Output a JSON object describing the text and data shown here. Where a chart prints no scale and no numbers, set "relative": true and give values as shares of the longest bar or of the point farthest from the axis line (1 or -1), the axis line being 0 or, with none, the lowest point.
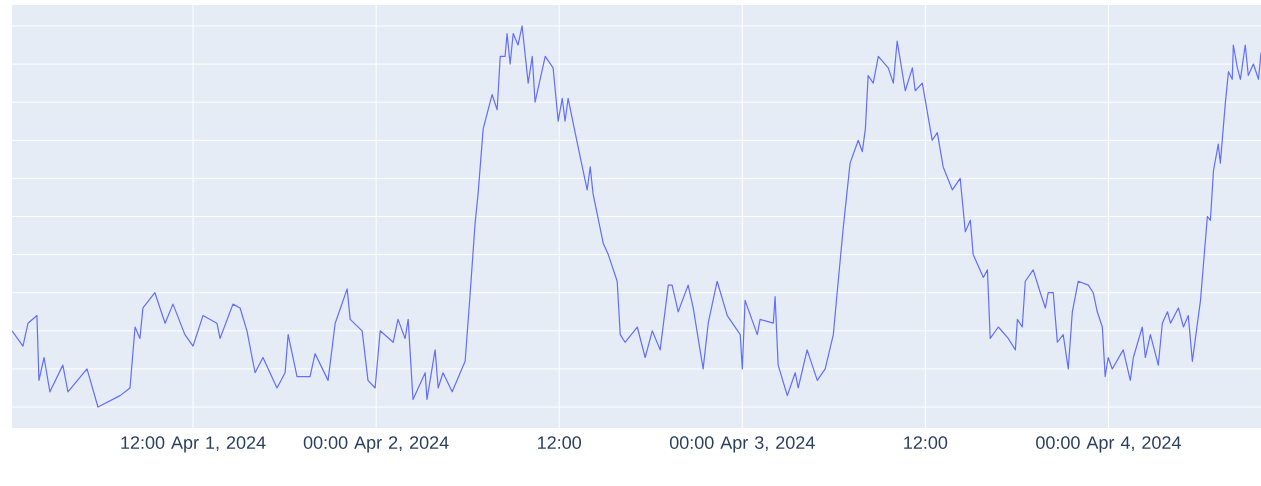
{
  "chart_data": {
    "type": "line",
    "relative": true,
    "color": "#636efa",
    "grid": true,
    "xlim": [
      "2024-04-01T00:08",
      "2024-04-04T10:00"
    ],
    "xticks": [
      {
        "value": "2024-04-01T12:00",
        "label": "12:00 Apr 1, 2024"
      },
      {
        "value": "2024-04-02T00:00",
        "label": "00:00 Apr 2, 2024"
      },
      {
        "value": "2024-04-02T12:00",
        "label": "12:00"
      },
      {
        "value": "2024-04-03T00:00",
        "label": "00:00 Apr 3, 2024"
      },
      {
        "value": "2024-04-03T12:00",
        "label": "12:00"
      },
      {
        "value": "2024-04-04T00:00",
        "label": "00:00 Apr 4, 2024"
      }
    ],
    "x": [
      "2024-04-01T00:08",
      "2024-04-01T00:51",
      "2024-04-01T01:11",
      "2024-04-01T01:46",
      "2024-04-01T01:54",
      "2024-04-01T02:14",
      "2024-04-01T02:37",
      "2024-04-01T03:28",
      "2024-04-01T03:48",
      "2024-04-01T05:03",
      "2024-04-01T05:46",
      "2024-04-01T07:13",
      "2024-04-01T07:52",
      "2024-04-01T08:12",
      "2024-04-01T08:31",
      "2024-04-01T08:43",
      "2024-04-01T09:30",
      "2024-04-01T10:10",
      "2024-04-01T10:41",
      "2024-04-01T11:28",
      "2024-04-01T12:00",
      "2024-04-01T12:39",
      "2024-04-01T13:34",
      "2024-04-01T13:46",
      "2024-04-01T14:37",
      "2024-04-01T15:05",
      "2024-04-01T15:32",
      "2024-04-01T16:04",
      "2024-04-01T16:35",
      "2024-04-01T17:30",
      "2024-04-01T18:02",
      "2024-04-01T18:14",
      "2024-04-01T18:49",
      "2024-04-01T19:40",
      "2024-04-01T20:00",
      "2024-04-01T20:51",
      "2024-04-01T21:19",
      "2024-04-01T22:06",
      "2024-04-01T22:18",
      "2024-04-01T23:05",
      "2024-04-01T23:28",
      "2024-04-01T23:56",
      "2024-04-02T00:16",
      "2024-04-02T01:07",
      "2024-04-02T01:26",
      "2024-04-02T01:54",
      "2024-04-02T02:06",
      "2024-04-02T02:25",
      "2024-04-02T03:13",
      "2024-04-02T03:20",
      "2024-04-02T03:52",
      "2024-04-02T04:04",
      "2024-04-02T04:23",
      "2024-04-02T04:59",
      "2024-04-02T05:50",
      "2024-04-02T06:10",
      "2024-04-02T06:29",
      "2024-04-02T06:41",
      "2024-04-02T07:01",
      "2024-04-02T07:36",
      "2024-04-02T07:56",
      "2024-04-02T08:08",
      "2024-04-02T08:27",
      "2024-04-02T08:35",
      "2024-04-02T08:47",
      "2024-04-02T08:59",
      "2024-04-02T09:18",
      "2024-04-02T09:34",
      "2024-04-02T09:58",
      "2024-04-02T10:14",
      "2024-04-02T10:25",
      "2024-04-02T11:05",
      "2024-04-02T11:36",
      "2024-04-02T11:56",
      "2024-04-02T12:12",
      "2024-04-02T12:23",
      "2024-04-02T12:35",
      "2024-04-02T13:15",
      "2024-04-02T13:50",
      "2024-04-02T14:02",
      "2024-04-02T14:13",
      "2024-04-02T14:53",
      "2024-04-02T15:13",
      "2024-04-02T15:48",
      "2024-04-02T16:00",
      "2024-04-02T16:19",
      "2024-04-02T17:07",
      "2024-04-02T17:38",
      "2024-04-02T18:06",
      "2024-04-02T18:37",
      "2024-04-02T19:09",
      "2024-04-02T19:24",
      "2024-04-02T19:48",
      "2024-04-02T20:27",
      "2024-04-02T20:47",
      "2024-04-02T21:26",
      "2024-04-02T21:46",
      "2024-04-02T22:21",
      "2024-04-02T23:01",
      "2024-04-02T23:52",
      "2024-04-03T00:00",
      "2024-04-03T00:11",
      "2024-04-03T00:59",
      "2024-04-03T01:10",
      "2024-04-03T02:02",
      "2024-04-03T02:09",
      "2024-04-03T02:21",
      "2024-04-03T02:57",
      "2024-04-03T03:28",
      "2024-04-03T03:40",
      "2024-04-03T04:15",
      "2024-04-03T04:55",
      "2024-04-03T05:26",
      "2024-04-03T05:58",
      "2024-04-03T06:13",
      "2024-04-03T06:37",
      "2024-04-03T07:04",
      "2024-04-03T07:36",
      "2024-04-03T07:52",
      "2024-04-03T08:04",
      "2024-04-03T08:15",
      "2024-04-03T08:35",
      "2024-04-03T08:55",
      "2024-04-03T09:34",
      "2024-04-03T09:54",
      "2024-04-03T10:09",
      "2024-04-03T10:41",
      "2024-04-03T11:09",
      "2024-04-03T11:20",
      "2024-04-03T11:48",
      "2024-04-03T12:27",
      "2024-04-03T12:47",
      "2024-04-03T13:10",
      "2024-04-03T13:46",
      "2024-04-03T14:17",
      "2024-04-03T14:37",
      "2024-04-03T14:57",
      "2024-04-03T15:08",
      "2024-04-03T15:48",
      "2024-04-03T16:04",
      "2024-04-03T16:15",
      "2024-04-03T16:47",
      "2024-04-03T17:26",
      "2024-04-03T17:54",
      "2024-04-03T18:02",
      "2024-04-03T18:21",
      "2024-04-03T18:33",
      "2024-04-03T19:04",
      "2024-04-03T19:32",
      "2024-04-03T19:52",
      "2024-04-03T20:03",
      "2024-04-03T20:23",
      "2024-04-03T20:39",
      "2024-04-03T21:02",
      "2024-04-03T21:22",
      "2024-04-03T21:38",
      "2024-04-03T22:01",
      "2024-04-03T22:41",
      "2024-04-03T23:00",
      "2024-04-03T23:16",
      "2024-04-03T23:36",
      "2024-04-03T23:47",
      "2024-04-03T23:59",
      "2024-04-04T00:15",
      "2024-04-04T00:58",
      "2024-04-04T01:26",
      "2024-04-04T01:38",
      "2024-04-04T02:13",
      "2024-04-04T02:25",
      "2024-04-04T02:45",
      "2024-04-04T03:16",
      "2024-04-04T03:32",
      "2024-04-04T03:52",
      "2024-04-04T04:04",
      "2024-04-04T04:35",
      "2024-04-04T04:55",
      "2024-04-04T05:14",
      "2024-04-04T05:30",
      "2024-04-04T05:50",
      "2024-04-04T06:02",
      "2024-04-04T06:29",
      "2024-04-04T06:41",
      "2024-04-04T06:53",
      "2024-04-04T07:12",
      "2024-04-04T07:20",
      "2024-04-04T07:40",
      "2024-04-04T07:52",
      "2024-04-04T08:07",
      "2024-04-04T08:11",
      "2024-04-04T08:27",
      "2024-04-04T08:39",
      "2024-04-04T08:58",
      "2024-04-04T09:10",
      "2024-04-04T09:30",
      "2024-04-04T09:50",
      "2024-04-04T10:00"
    ],
    "values": [
      0.2,
      0.16,
      0.22,
      0.24,
      0.07,
      0.13,
      0.04,
      0.11,
      0.04,
      0.1,
      0.0,
      0.03,
      0.05,
      0.21,
      0.18,
      0.26,
      0.3,
      0.22,
      0.27,
      0.19,
      0.16,
      0.24,
      0.22,
      0.18,
      0.27,
      0.26,
      0.2,
      0.09,
      0.13,
      0.05,
      0.09,
      0.19,
      0.08,
      0.08,
      0.14,
      0.07,
      0.22,
      0.31,
      0.23,
      0.2,
      0.07,
      0.05,
      0.2,
      0.17,
      0.23,
      0.18,
      0.23,
      0.02,
      0.09,
      0.02,
      0.15,
      0.05,
      0.09,
      0.04,
      0.12,
      0.3,
      0.48,
      0.56,
      0.73,
      0.82,
      0.78,
      0.92,
      0.92,
      0.98,
      0.9,
      0.98,
      0.95,
      1.0,
      0.85,
      0.92,
      0.8,
      0.92,
      0.89,
      0.75,
      0.81,
      0.75,
      0.81,
      0.68,
      0.57,
      0.63,
      0.56,
      0.43,
      0.4,
      0.33,
      0.19,
      0.17,
      0.21,
      0.13,
      0.2,
      0.15,
      0.32,
      0.32,
      0.25,
      0.32,
      0.26,
      0.1,
      0.22,
      0.33,
      0.24,
      0.19,
      0.1,
      0.28,
      0.19,
      0.23,
      0.22,
      0.29,
      0.11,
      0.03,
      0.09,
      0.05,
      0.15,
      0.07,
      0.1,
      0.19,
      0.3,
      0.47,
      0.64,
      0.7,
      0.67,
      0.73,
      0.87,
      0.85,
      0.92,
      0.89,
      0.85,
      0.96,
      0.83,
      0.89,
      0.83,
      0.85,
      0.7,
      0.72,
      0.63,
      0.57,
      0.6,
      0.46,
      0.49,
      0.4,
      0.34,
      0.36,
      0.18,
      0.21,
      0.18,
      0.15,
      0.23,
      0.21,
      0.33,
      0.36,
      0.3,
      0.26,
      0.3,
      0.3,
      0.17,
      0.19,
      0.1,
      0.25,
      0.33,
      0.32,
      0.3,
      0.25,
      0.21,
      0.08,
      0.13,
      0.1,
      0.15,
      0.07,
      0.13,
      0.21,
      0.13,
      0.19,
      0.11,
      0.22,
      0.25,
      0.22,
      0.26,
      0.21,
      0.24,
      0.12,
      0.22,
      0.28,
      0.5,
      0.49,
      0.62,
      0.69,
      0.64,
      0.8,
      0.88,
      0.86,
      0.95,
      0.89,
      0.86,
      0.95,
      0.87,
      0.9,
      0.86,
      0.93
    ]
  }
}
